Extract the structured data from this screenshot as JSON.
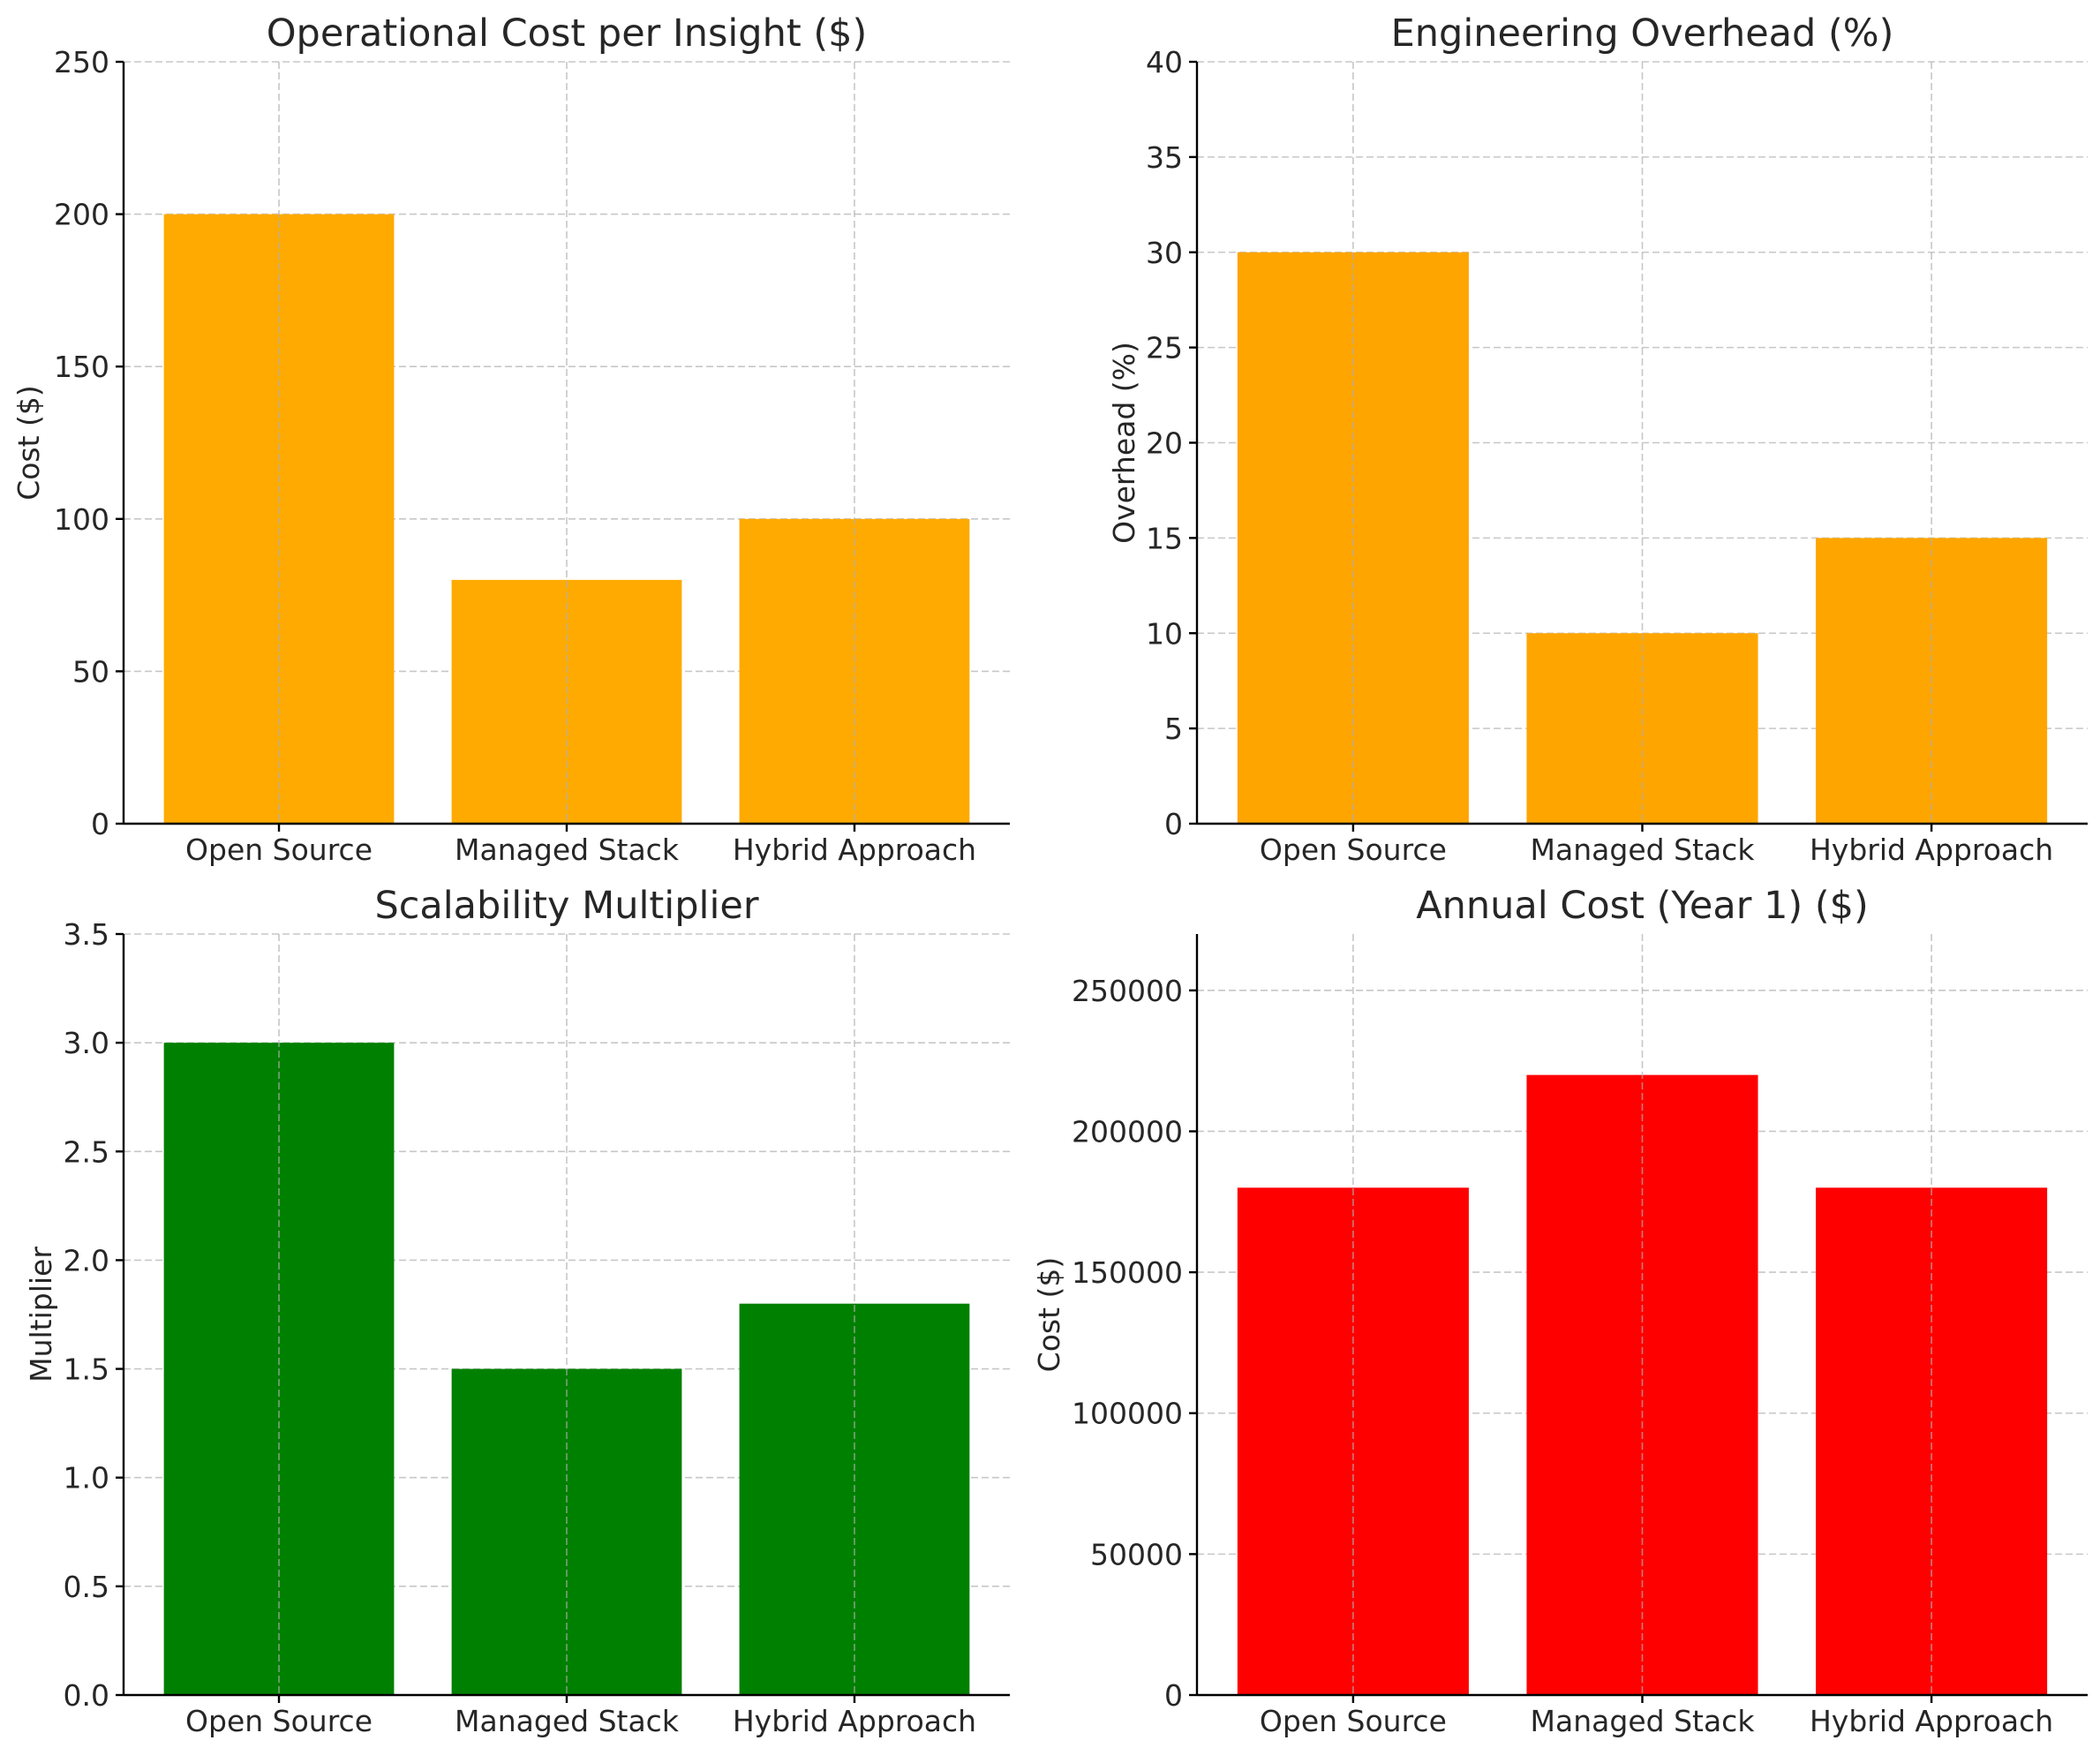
{
  "chart_data": [
    {
      "type": "bar",
      "title": "Operational Cost per Insight ($)",
      "xlabel": "",
      "ylabel": "Cost ($)",
      "categories": [
        "Open Source",
        "Managed Stack",
        "Hybrid Approach"
      ],
      "values": [
        200,
        80,
        100
      ],
      "ylim": [
        0,
        250
      ],
      "yticks": [
        0,
        50,
        100,
        150,
        200,
        250
      ],
      "ytick_labels": [
        "0",
        "50",
        "100",
        "150",
        "200",
        "250"
      ],
      "color": "#ffaa00",
      "grid": true,
      "legend": "none"
    },
    {
      "type": "bar",
      "title": "Engineering Overhead (%)",
      "xlabel": "",
      "ylabel": "Overhead (%)",
      "categories": [
        "Open Source",
        "Managed Stack",
        "Hybrid Approach"
      ],
      "values": [
        30,
        10,
        15
      ],
      "ylim": [
        0,
        40
      ],
      "yticks": [
        0,
        5,
        10,
        15,
        20,
        25,
        30,
        35,
        40
      ],
      "ytick_labels": [
        "0",
        "5",
        "10",
        "15",
        "20",
        "25",
        "30",
        "35",
        "40"
      ],
      "color": "#ffa500",
      "grid": true,
      "legend": "none"
    },
    {
      "type": "bar",
      "title": "Scalability Multiplier",
      "xlabel": "",
      "ylabel": "Multiplier",
      "categories": [
        "Open Source",
        "Managed Stack",
        "Hybrid Approach"
      ],
      "values": [
        3.0,
        1.5,
        1.8
      ],
      "ylim": [
        0,
        3.5
      ],
      "yticks": [
        0,
        0.5,
        1,
        1.5,
        2,
        2.5,
        3,
        3.5
      ],
      "ytick_labels": [
        "0.0",
        "0.5",
        "1.0",
        "1.5",
        "2.0",
        "2.5",
        "3.0",
        "3.5"
      ],
      "color": "#008000",
      "grid": true,
      "legend": "none"
    },
    {
      "type": "bar",
      "title": "Annual Cost (Year 1) ($)",
      "xlabel": "",
      "ylabel": "Cost ($)",
      "categories": [
        "Open Source",
        "Managed Stack",
        "Hybrid Approach"
      ],
      "values": [
        180000,
        220000,
        180000
      ],
      "ylim": [
        0,
        270000
      ],
      "yticks": [
        0,
        50000,
        100000,
        150000,
        200000,
        250000
      ],
      "ytick_labels": [
        "0",
        "50000",
        "100000",
        "150000",
        "200000",
        "250000"
      ],
      "color": "#ff0000",
      "grid": true,
      "legend": "none"
    }
  ]
}
